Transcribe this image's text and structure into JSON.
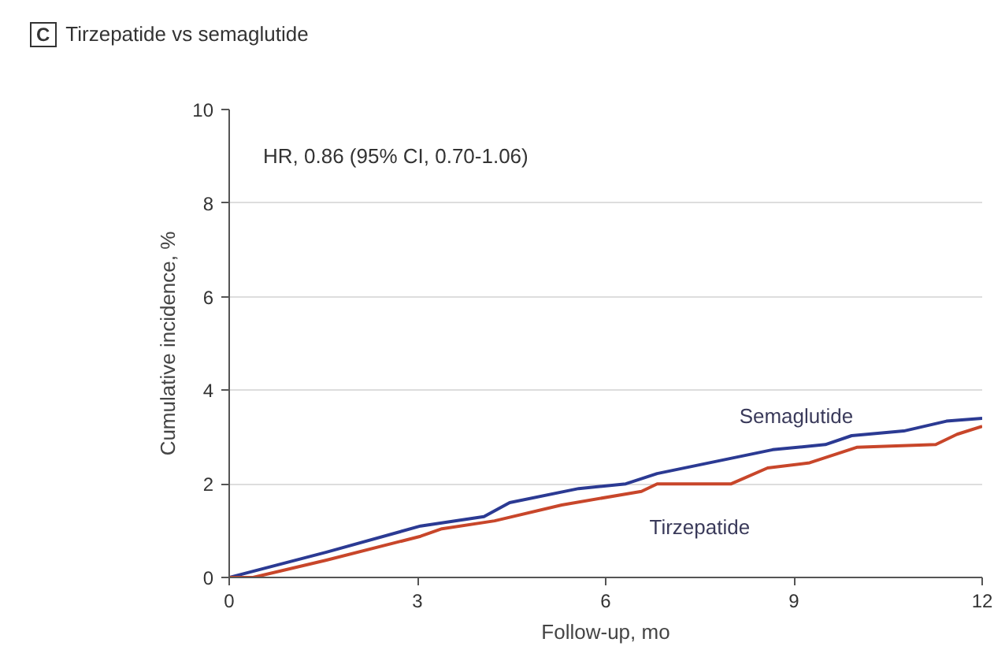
{
  "chart_data": {
    "type": "line",
    "title": "Tirzepatide vs semaglutide",
    "xlabel": "Follow-up, mo",
    "ylabel": "Cumulative incidence, %",
    "annotations": [
      "C",
      "HR, 0.86 (95% CI, 0.70-1.06)"
    ],
    "xlim": [
      0,
      12
    ],
    "ylim": [
      0,
      10
    ],
    "xticks": [
      0,
      3,
      6,
      9,
      12
    ],
    "yticks": [
      0,
      2,
      4,
      6,
      8,
      10
    ],
    "grid": "y",
    "marker": "none",
    "line_style": "solid",
    "series": [
      {
        "name": "Semaglutide",
        "color": "#2b3a93",
        "x": [
          0,
          1.55,
          3.05,
          4.06,
          4.47,
          5.57,
          6.32,
          6.82,
          8.66,
          9.5,
          9.92,
          10.75,
          11.43,
          12
        ],
        "values": [
          0,
          0.54,
          1.1,
          1.3,
          1.6,
          1.9,
          2.0,
          2.22,
          2.73,
          2.84,
          3.03,
          3.13,
          3.34,
          3.4
        ]
      },
      {
        "name": "Tirzepatide",
        "color": "#c8462a",
        "x": [
          0,
          0.38,
          1.55,
          3.05,
          3.39,
          4.23,
          5.3,
          6.57,
          6.82,
          8.0,
          8.58,
          9.25,
          10.0,
          11.26,
          11.6,
          12
        ],
        "values": [
          0,
          0,
          0.37,
          0.88,
          1.04,
          1.21,
          1.55,
          1.84,
          2.0,
          2.0,
          2.34,
          2.45,
          2.78,
          2.84,
          3.06,
          3.23
        ]
      }
    ]
  }
}
